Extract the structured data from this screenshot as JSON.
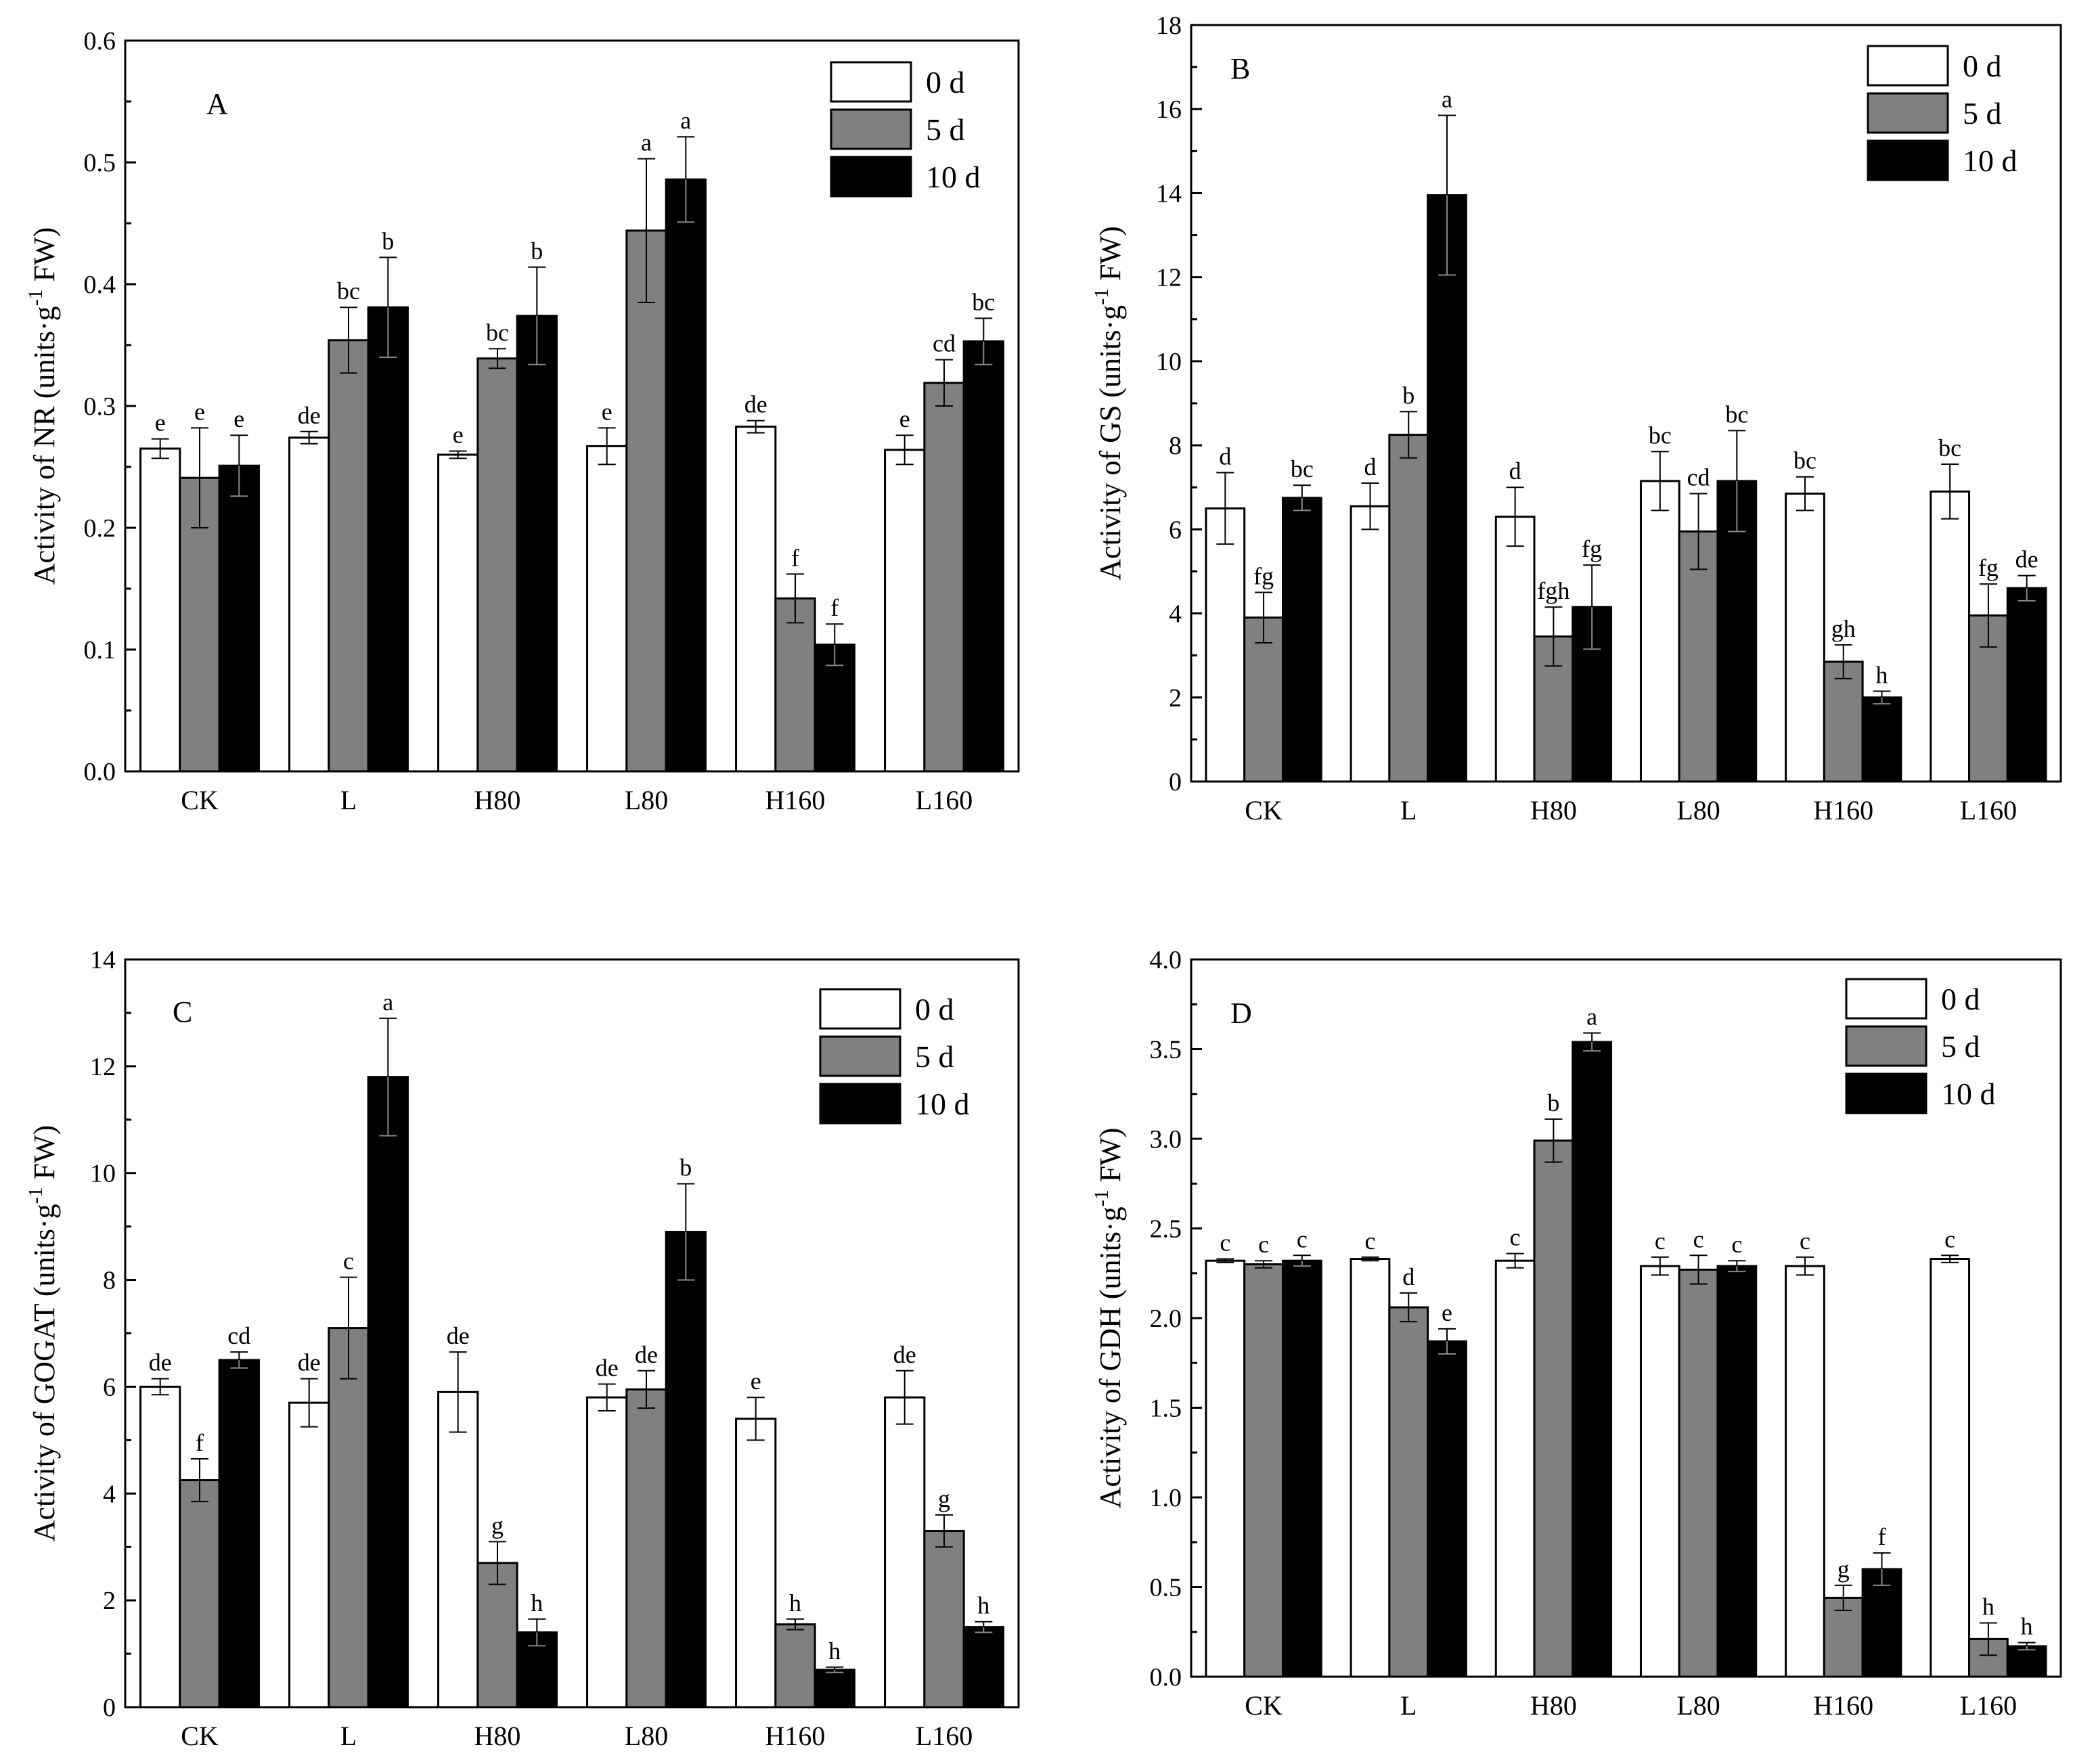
{
  "chart_data": [
    {
      "type": "bar",
      "panel": "A",
      "ylabel_main": "Activity of NR (units·g",
      "ylabel_sup": "-1",
      "ylabel_end": " FW)",
      "categories": [
        "CK",
        "L",
        "H80",
        "L80",
        "H160",
        "L160"
      ],
      "ylim": [
        0,
        0.6
      ],
      "yticks": [
        "0.0",
        "0.1",
        "0.2",
        "0.3",
        "0.4",
        "0.5",
        "0.6"
      ],
      "series": [
        {
          "name": "0 d",
          "values": [
            0.265,
            0.274,
            0.26,
            0.267,
            0.283,
            0.264
          ],
          "errors": [
            0.008,
            0.005,
            0.003,
            0.015,
            0.005,
            0.012
          ],
          "letters": [
            "e",
            "de",
            "e",
            "e",
            "de",
            "e"
          ]
        },
        {
          "name": "5 d",
          "values": [
            0.241,
            0.354,
            0.339,
            0.444,
            0.142,
            0.319
          ],
          "errors": [
            0.041,
            0.027,
            0.008,
            0.059,
            0.02,
            0.019
          ],
          "letters": [
            "e",
            "bc",
            "bc",
            "a",
            "f",
            "cd"
          ]
        },
        {
          "name": "10 d",
          "values": [
            0.251,
            0.381,
            0.374,
            0.486,
            0.104,
            0.353
          ],
          "errors": [
            0.025,
            0.041,
            0.04,
            0.035,
            0.017,
            0.019
          ],
          "letters": [
            "e",
            "b",
            "b",
            "a",
            "f",
            "bc"
          ]
        }
      ]
    },
    {
      "type": "bar",
      "panel": "B",
      "ylabel_main": "Activity of GS (units·g",
      "ylabel_sup": "-1",
      "ylabel_end": " FW)",
      "categories": [
        "CK",
        "L",
        "H80",
        "L80",
        "H160",
        "L160"
      ],
      "ylim": [
        0,
        18
      ],
      "yticks": [
        "0",
        "2",
        "4",
        "6",
        "8",
        "10",
        "12",
        "14",
        "16",
        "18"
      ],
      "series": [
        {
          "name": "0 d",
          "values": [
            6.5,
            6.55,
            6.3,
            7.15,
            6.85,
            6.9
          ],
          "errors": [
            0.85,
            0.55,
            0.7,
            0.7,
            0.4,
            0.65
          ],
          "letters": [
            "d",
            "d",
            "d",
            "bc",
            "bc",
            "bc"
          ]
        },
        {
          "name": "5 d",
          "values": [
            3.9,
            8.25,
            3.45,
            5.95,
            2.85,
            3.95
          ],
          "errors": [
            0.6,
            0.55,
            0.7,
            0.9,
            0.4,
            0.75
          ],
          "letters": [
            "fg",
            "b",
            "fgh",
            "cd",
            "gh",
            "fg"
          ]
        },
        {
          "name": "10 d",
          "values": [
            6.75,
            13.95,
            4.15,
            7.15,
            2.0,
            4.6
          ],
          "errors": [
            0.3,
            1.9,
            1.0,
            1.2,
            0.15,
            0.3
          ],
          "letters": [
            "bc",
            "a",
            "fg",
            "bc",
            "h",
            "de"
          ]
        }
      ]
    },
    {
      "type": "bar",
      "panel": "C",
      "ylabel_main": "Activity of GOGAT (units·g",
      "ylabel_sup": "-1",
      "ylabel_end": " FW)",
      "categories": [
        "CK",
        "L",
        "H80",
        "L80",
        "H160",
        "L160"
      ],
      "ylim": [
        0,
        14
      ],
      "yticks": [
        "0",
        "2",
        "4",
        "6",
        "8",
        "10",
        "12",
        "14"
      ],
      "series": [
        {
          "name": "0 d",
          "values": [
            6.0,
            5.7,
            5.9,
            5.8,
            5.4,
            5.8
          ],
          "errors": [
            0.15,
            0.45,
            0.75,
            0.25,
            0.4,
            0.5
          ],
          "letters": [
            "de",
            "de",
            "de",
            "de",
            "e",
            "de"
          ]
        },
        {
          "name": "5 d",
          "values": [
            4.25,
            7.1,
            2.7,
            5.95,
            1.55,
            3.3
          ],
          "errors": [
            0.4,
            0.95,
            0.4,
            0.35,
            0.1,
            0.3
          ],
          "letters": [
            "f",
            "c",
            "g",
            "de",
            "h",
            "g"
          ]
        },
        {
          "name": "10 d",
          "values": [
            6.5,
            11.8,
            1.4,
            8.9,
            0.7,
            1.5
          ],
          "errors": [
            0.15,
            1.1,
            0.25,
            0.9,
            0.05,
            0.1
          ],
          "letters": [
            "cd",
            "a",
            "h",
            "b",
            "h",
            "h"
          ]
        }
      ]
    },
    {
      "type": "bar",
      "panel": "D",
      "ylabel_main": "Activity of GDH (units·g",
      "ylabel_sup": "-1",
      "ylabel_end": " FW)",
      "categories": [
        "CK",
        "L",
        "H80",
        "L80",
        "H160",
        "L160"
      ],
      "ylim": [
        0,
        4.0
      ],
      "yticks": [
        "0.0",
        "0.5",
        "1.0",
        "1.5",
        "2.0",
        "2.5",
        "3.0",
        "3.5",
        "4.0"
      ],
      "series": [
        {
          "name": "0 d",
          "values": [
            2.32,
            2.33,
            2.32,
            2.29,
            2.29,
            2.33
          ],
          "errors": [
            0.01,
            0.01,
            0.04,
            0.05,
            0.05,
            0.02
          ],
          "letters": [
            "c",
            "c",
            "c",
            "c",
            "c",
            "c"
          ]
        },
        {
          "name": "5 d",
          "values": [
            2.3,
            2.06,
            2.99,
            2.27,
            0.44,
            0.21
          ],
          "errors": [
            0.02,
            0.08,
            0.12,
            0.08,
            0.07,
            0.09
          ],
          "letters": [
            "c",
            "d",
            "b",
            "c",
            "g",
            "h"
          ]
        },
        {
          "name": "10 d",
          "values": [
            2.32,
            1.87,
            3.54,
            2.29,
            0.6,
            0.17
          ],
          "errors": [
            0.03,
            0.07,
            0.05,
            0.03,
            0.09,
            0.02
          ],
          "letters": [
            "c",
            "e",
            "a",
            "c",
            "f",
            "h"
          ]
        }
      ]
    }
  ],
  "legend": [
    "0 d",
    "5 d",
    "10 d"
  ],
  "colors": {
    "0 d": "#ffffff",
    "5 d": "#808080",
    "10 d": "#000000"
  }
}
